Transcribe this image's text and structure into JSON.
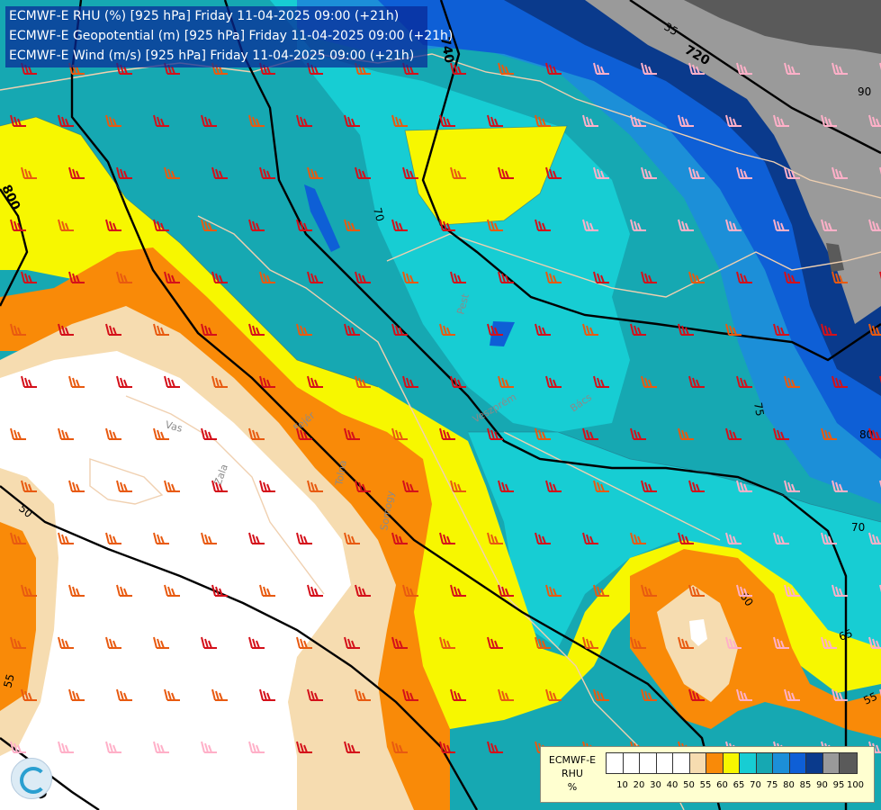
{
  "header": {
    "line1": "ECMWF-E RHU (%) [925 hPa] Friday 11-04-2025 09:00 (+21h)",
    "line2": "ECMWF-E Geopotential (m) [925 hPa] Friday 11-04-2025 09:00 (+21h)",
    "line3": "ECMWF-E Wind (m/s) [925 hPa] Friday 11-04-2025 09:00 (+21h)"
  },
  "legend": {
    "model": "ECMWF-E",
    "variable": "RHU",
    "unit": "%",
    "tick_labels": [
      "10",
      "20",
      "30",
      "40",
      "50",
      "55",
      "60",
      "65",
      "70",
      "75",
      "80",
      "85",
      "90",
      "95",
      "100"
    ],
    "colors": [
      "#ffffff",
      "#ffffff",
      "#ffffff",
      "#ffffff",
      "#ffffff",
      "#f6dcb0",
      "#f98a08",
      "#f7f700",
      "#17cdd3",
      "#16a8b2",
      "#1c8fd8",
      "#0e5fd6",
      "#0a3a8c",
      "#9a9a9a",
      "#5a5a5a"
    ]
  },
  "contour_labels": {
    "rhu": [
      "35",
      "50",
      "55",
      "55",
      "60",
      "65",
      "70",
      "70",
      "75",
      "80",
      "90"
    ],
    "geopotential": [
      "720",
      "740",
      "800",
      "820"
    ]
  },
  "map_labels": [
    "Vas",
    "Zala",
    "Tolna",
    "Fejér",
    "Pest",
    "Bács",
    "Somogy",
    "Veszprém"
  ],
  "colors": {
    "header_bg": "#0828a0",
    "legend_bg": "#ffffd0",
    "geopotential_line": "#000000",
    "border_line": "#f0d0b0"
  }
}
